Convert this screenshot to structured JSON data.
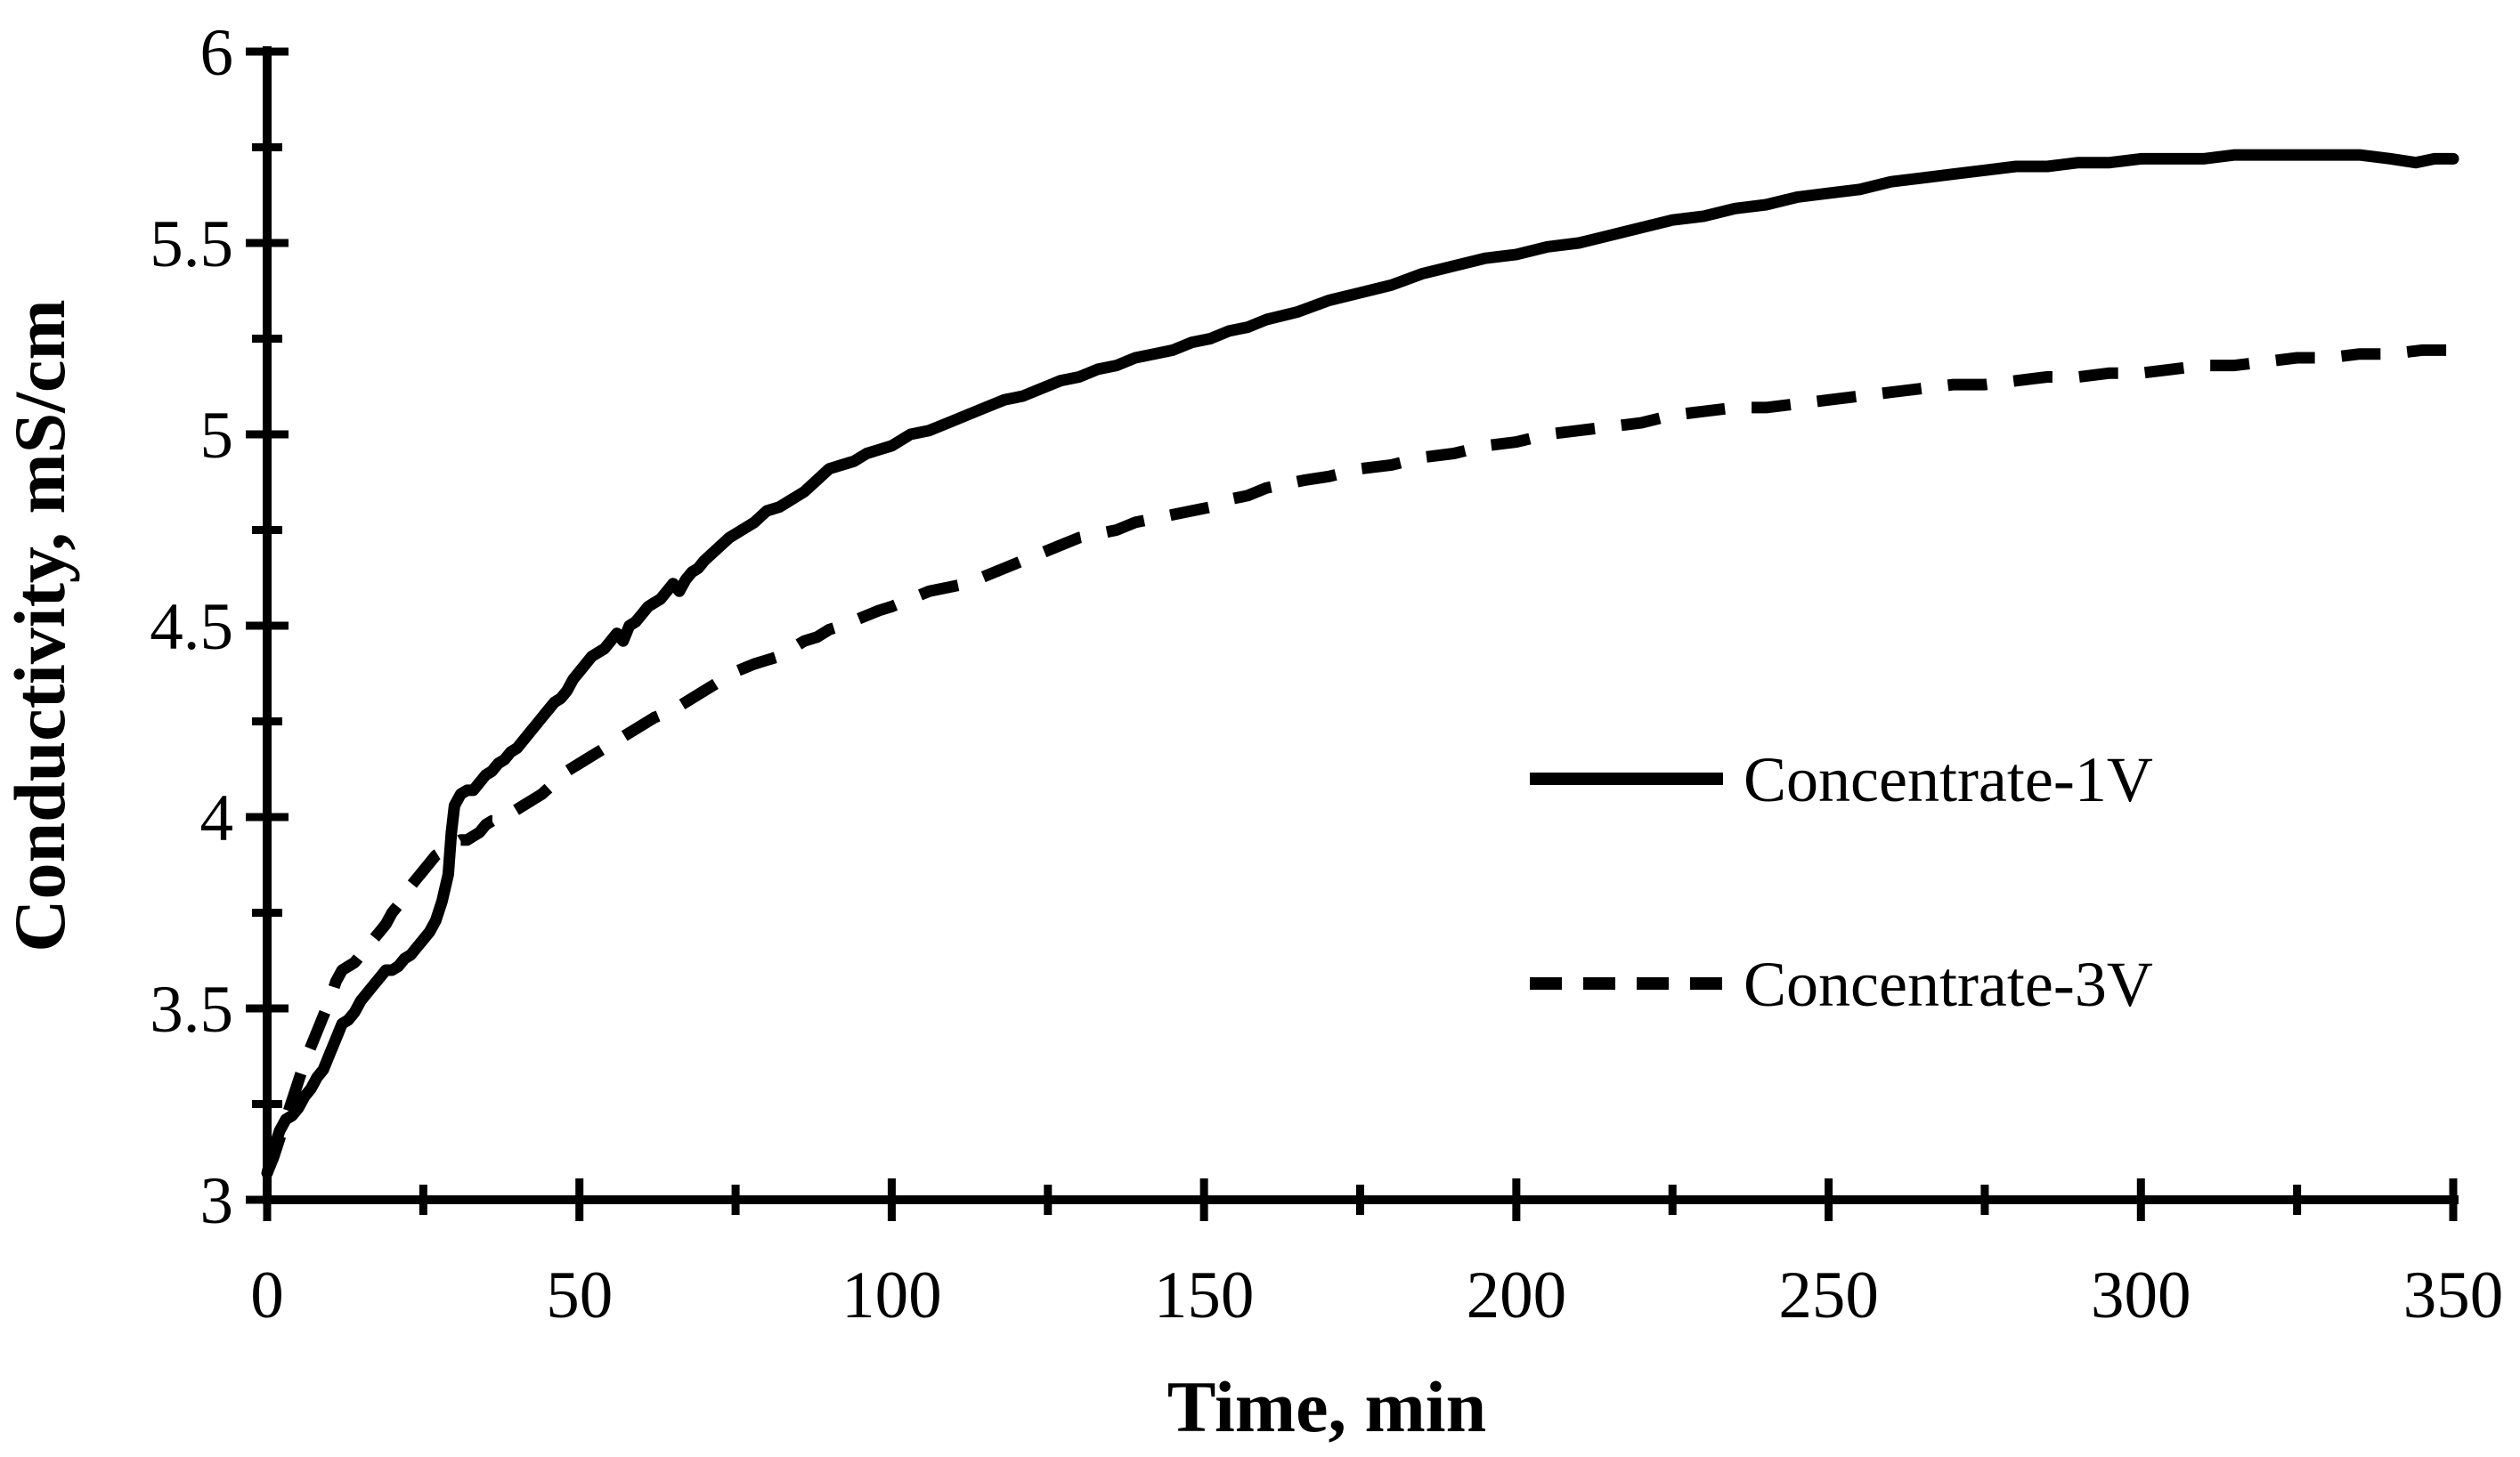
{
  "figure": {
    "background": "#ffffff",
    "foreground": "#000000"
  },
  "chart_data": {
    "type": "line",
    "title": "",
    "xlabel": "Time, min",
    "ylabel": "Conductivity, mS/cm",
    "xlim": [
      0,
      350
    ],
    "ylim": [
      3,
      6
    ],
    "x_tick_labels": [
      "0",
      "50",
      "100",
      "150",
      "200",
      "250",
      "300",
      "350"
    ],
    "y_tick_labels": [
      "3",
      "3.5",
      "4",
      "4.5",
      "5",
      "5.5",
      "6"
    ],
    "x_minor_step": 25,
    "y_minor_step": 0.25,
    "grid": false,
    "legend_position": "center-right",
    "axis_color": "#000000",
    "series": [
      {
        "name": "Concentrate-1V",
        "style": "solid",
        "color": "#000000",
        "points": [
          [
            0,
            3.07
          ],
          [
            1,
            3.13
          ],
          [
            2,
            3.18
          ],
          [
            3,
            3.21
          ],
          [
            4,
            3.22
          ],
          [
            5,
            3.24
          ],
          [
            6,
            3.27
          ],
          [
            7,
            3.29
          ],
          [
            8,
            3.32
          ],
          [
            9,
            3.34
          ],
          [
            10,
            3.38
          ],
          [
            11,
            3.42
          ],
          [
            12,
            3.46
          ],
          [
            13,
            3.47
          ],
          [
            14,
            3.49
          ],
          [
            15,
            3.52
          ],
          [
            16,
            3.54
          ],
          [
            17,
            3.56
          ],
          [
            18,
            3.58
          ],
          [
            19,
            3.6
          ],
          [
            20,
            3.6
          ],
          [
            21,
            3.61
          ],
          [
            22,
            3.63
          ],
          [
            23,
            3.64
          ],
          [
            24,
            3.66
          ],
          [
            25,
            3.68
          ],
          [
            26,
            3.7
          ],
          [
            27,
            3.73
          ],
          [
            28,
            3.78
          ],
          [
            29,
            3.85
          ],
          [
            29.5,
            3.96
          ],
          [
            30,
            4.03
          ],
          [
            31,
            4.06
          ],
          [
            32,
            4.07
          ],
          [
            33,
            4.07
          ],
          [
            34,
            4.09
          ],
          [
            35,
            4.11
          ],
          [
            36,
            4.12
          ],
          [
            37,
            4.14
          ],
          [
            38,
            4.15
          ],
          [
            39,
            4.17
          ],
          [
            40,
            4.18
          ],
          [
            41,
            4.2
          ],
          [
            42,
            4.22
          ],
          [
            43,
            4.24
          ],
          [
            44,
            4.26
          ],
          [
            45,
            4.28
          ],
          [
            46,
            4.3
          ],
          [
            47,
            4.31
          ],
          [
            48,
            4.33
          ],
          [
            49,
            4.36
          ],
          [
            50,
            4.38
          ],
          [
            51,
            4.4
          ],
          [
            52,
            4.42
          ],
          [
            53,
            4.43
          ],
          [
            54,
            4.44
          ],
          [
            55,
            4.46
          ],
          [
            56,
            4.48
          ],
          [
            57,
            4.46
          ],
          [
            58,
            4.5
          ],
          [
            59,
            4.51
          ],
          [
            60,
            4.53
          ],
          [
            61,
            4.55
          ],
          [
            62,
            4.56
          ],
          [
            63,
            4.57
          ],
          [
            64,
            4.59
          ],
          [
            65,
            4.61
          ],
          [
            66,
            4.59
          ],
          [
            67,
            4.62
          ],
          [
            68,
            4.64
          ],
          [
            69,
            4.65
          ],
          [
            70,
            4.67
          ],
          [
            72,
            4.7
          ],
          [
            74,
            4.73
          ],
          [
            76,
            4.75
          ],
          [
            78,
            4.77
          ],
          [
            80,
            4.8
          ],
          [
            82,
            4.81
          ],
          [
            84,
            4.83
          ],
          [
            86,
            4.85
          ],
          [
            88,
            4.88
          ],
          [
            90,
            4.91
          ],
          [
            92,
            4.92
          ],
          [
            94,
            4.93
          ],
          [
            96,
            4.95
          ],
          [
            98,
            4.96
          ],
          [
            100,
            4.97
          ],
          [
            103,
            5.0
          ],
          [
            106,
            5.01
          ],
          [
            109,
            5.03
          ],
          [
            112,
            5.05
          ],
          [
            115,
            5.07
          ],
          [
            118,
            5.09
          ],
          [
            121,
            5.1
          ],
          [
            124,
            5.12
          ],
          [
            127,
            5.14
          ],
          [
            130,
            5.15
          ],
          [
            133,
            5.17
          ],
          [
            136,
            5.18
          ],
          [
            139,
            5.2
          ],
          [
            142,
            5.21
          ],
          [
            145,
            5.22
          ],
          [
            148,
            5.24
          ],
          [
            151,
            5.25
          ],
          [
            154,
            5.27
          ],
          [
            157,
            5.28
          ],
          [
            160,
            5.3
          ],
          [
            165,
            5.32
          ],
          [
            170,
            5.35
          ],
          [
            175,
            5.37
          ],
          [
            180,
            5.39
          ],
          [
            185,
            5.42
          ],
          [
            190,
            5.44
          ],
          [
            195,
            5.46
          ],
          [
            200,
            5.47
          ],
          [
            205,
            5.49
          ],
          [
            210,
            5.5
          ],
          [
            215,
            5.52
          ],
          [
            220,
            5.54
          ],
          [
            225,
            5.56
          ],
          [
            230,
            5.57
          ],
          [
            235,
            5.59
          ],
          [
            240,
            5.6
          ],
          [
            245,
            5.62
          ],
          [
            250,
            5.63
          ],
          [
            255,
            5.64
          ],
          [
            260,
            5.66
          ],
          [
            265,
            5.67
          ],
          [
            270,
            5.68
          ],
          [
            275,
            5.69
          ],
          [
            280,
            5.7
          ],
          [
            285,
            5.7
          ],
          [
            290,
            5.71
          ],
          [
            295,
            5.71
          ],
          [
            300,
            5.72
          ],
          [
            305,
            5.72
          ],
          [
            310,
            5.72
          ],
          [
            315,
            5.73
          ],
          [
            320,
            5.73
          ],
          [
            325,
            5.73
          ],
          [
            330,
            5.73
          ],
          [
            335,
            5.73
          ],
          [
            340,
            5.72
          ],
          [
            344,
            5.71
          ],
          [
            347,
            5.72
          ],
          [
            350,
            5.72
          ]
        ]
      },
      {
        "name": "Concentrate-3V",
        "style": "dashed",
        "color": "#000000",
        "points": [
          [
            0,
            3.07
          ],
          [
            1,
            3.11
          ],
          [
            2,
            3.16
          ],
          [
            3,
            3.21
          ],
          [
            4,
            3.26
          ],
          [
            5,
            3.31
          ],
          [
            6,
            3.36
          ],
          [
            7,
            3.4
          ],
          [
            8,
            3.44
          ],
          [
            9,
            3.48
          ],
          [
            10,
            3.52
          ],
          [
            11,
            3.57
          ],
          [
            12,
            3.6
          ],
          [
            13,
            3.61
          ],
          [
            14,
            3.62
          ],
          [
            15,
            3.64
          ],
          [
            16,
            3.65
          ],
          [
            17,
            3.68
          ],
          [
            18,
            3.7
          ],
          [
            19,
            3.72
          ],
          [
            20,
            3.75
          ],
          [
            21,
            3.77
          ],
          [
            22,
            3.79
          ],
          [
            23,
            3.82
          ],
          [
            24,
            3.84
          ],
          [
            25,
            3.86
          ],
          [
            26,
            3.88
          ],
          [
            27,
            3.9
          ],
          [
            28,
            3.91
          ],
          [
            29,
            3.92
          ],
          [
            30,
            3.93
          ],
          [
            31,
            3.94
          ],
          [
            32,
            3.94
          ],
          [
            33,
            3.95
          ],
          [
            34,
            3.96
          ],
          [
            35,
            3.98
          ],
          [
            36,
            3.99
          ],
          [
            37,
            3.99
          ],
          [
            38,
            4.0
          ],
          [
            39,
            4.01
          ],
          [
            40,
            4.02
          ],
          [
            41,
            4.03
          ],
          [
            42,
            4.04
          ],
          [
            43,
            4.05
          ],
          [
            44,
            4.06
          ],
          [
            46,
            4.09
          ],
          [
            48,
            4.12
          ],
          [
            50,
            4.14
          ],
          [
            52,
            4.16
          ],
          [
            54,
            4.18
          ],
          [
            56,
            4.2
          ],
          [
            58,
            4.22
          ],
          [
            60,
            4.24
          ],
          [
            62,
            4.26
          ],
          [
            65,
            4.28
          ],
          [
            68,
            4.31
          ],
          [
            70,
            4.33
          ],
          [
            72,
            4.35
          ],
          [
            75,
            4.38
          ],
          [
            78,
            4.4
          ],
          [
            80,
            4.41
          ],
          [
            82,
            4.42
          ],
          [
            84,
            4.44
          ],
          [
            86,
            4.46
          ],
          [
            88,
            4.47
          ],
          [
            90,
            4.49
          ],
          [
            92,
            4.5
          ],
          [
            95,
            4.52
          ],
          [
            98,
            4.54
          ],
          [
            100,
            4.55
          ],
          [
            103,
            4.57
          ],
          [
            106,
            4.59
          ],
          [
            109,
            4.6
          ],
          [
            112,
            4.61
          ],
          [
            115,
            4.63
          ],
          [
            118,
            4.65
          ],
          [
            121,
            4.67
          ],
          [
            124,
            4.69
          ],
          [
            127,
            4.71
          ],
          [
            130,
            4.73
          ],
          [
            133,
            4.74
          ],
          [
            136,
            4.75
          ],
          [
            139,
            4.77
          ],
          [
            142,
            4.78
          ],
          [
            145,
            4.79
          ],
          [
            148,
            4.8
          ],
          [
            151,
            4.81
          ],
          [
            154,
            4.83
          ],
          [
            157,
            4.84
          ],
          [
            160,
            4.86
          ],
          [
            163,
            4.87
          ],
          [
            166,
            4.88
          ],
          [
            170,
            4.89
          ],
          [
            175,
            4.91
          ],
          [
            180,
            4.92
          ],
          [
            185,
            4.94
          ],
          [
            190,
            4.95
          ],
          [
            195,
            4.97
          ],
          [
            200,
            4.98
          ],
          [
            205,
            5.0
          ],
          [
            210,
            5.01
          ],
          [
            215,
            5.02
          ],
          [
            220,
            5.03
          ],
          [
            225,
            5.05
          ],
          [
            230,
            5.06
          ],
          [
            235,
            5.07
          ],
          [
            240,
            5.07
          ],
          [
            245,
            5.08
          ],
          [
            250,
            5.09
          ],
          [
            255,
            5.1
          ],
          [
            260,
            5.11
          ],
          [
            265,
            5.12
          ],
          [
            270,
            5.13
          ],
          [
            275,
            5.13
          ],
          [
            280,
            5.14
          ],
          [
            285,
            5.15
          ],
          [
            290,
            5.15
          ],
          [
            295,
            5.16
          ],
          [
            300,
            5.16
          ],
          [
            305,
            5.17
          ],
          [
            310,
            5.18
          ],
          [
            315,
            5.18
          ],
          [
            320,
            5.19
          ],
          [
            325,
            5.2
          ],
          [
            330,
            5.2
          ],
          [
            335,
            5.21
          ],
          [
            340,
            5.21
          ],
          [
            345,
            5.22
          ],
          [
            350,
            5.22
          ]
        ]
      }
    ]
  }
}
